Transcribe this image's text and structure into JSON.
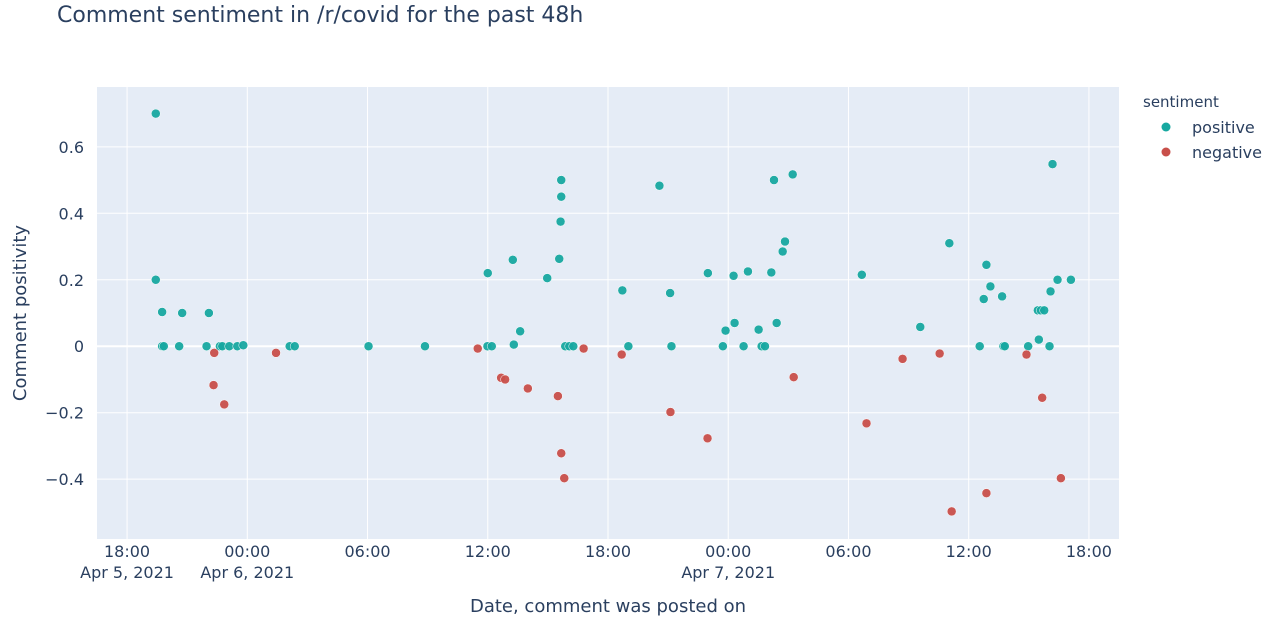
{
  "chart_data": {
    "type": "scatter",
    "title": "Comment sentiment in /r/covid for the past 48h",
    "xlabel": "Date, comment was posted on",
    "ylabel": "Comment positivity",
    "x_axis_type": "date",
    "xlim": [
      "2021-04-05T16:30",
      "2021-04-07T19:30"
    ],
    "ylim": [
      -0.58,
      0.78
    ],
    "grid": true,
    "x_ticks": [
      {
        "at": "2021-04-05T18:00",
        "label": "18:00",
        "date_label": "Apr 5, 2021"
      },
      {
        "at": "2021-04-06T00:00",
        "label": "00:00",
        "date_label": "Apr 6, 2021"
      },
      {
        "at": "2021-04-06T06:00",
        "label": "06:00",
        "date_label": ""
      },
      {
        "at": "2021-04-06T12:00",
        "label": "12:00",
        "date_label": ""
      },
      {
        "at": "2021-04-06T18:00",
        "label": "18:00",
        "date_label": ""
      },
      {
        "at": "2021-04-07T00:00",
        "label": "00:00",
        "date_label": "Apr 7, 2021"
      },
      {
        "at": "2021-04-07T06:00",
        "label": "06:00",
        "date_label": ""
      },
      {
        "at": "2021-04-07T12:00",
        "label": "12:00",
        "date_label": ""
      },
      {
        "at": "2021-04-07T18:00",
        "label": "18:00",
        "date_label": ""
      }
    ],
    "y_ticks": [
      {
        "value": 0.6,
        "label": "0.6"
      },
      {
        "value": 0.4,
        "label": "0.4"
      },
      {
        "value": 0.2,
        "label": "0.2"
      },
      {
        "value": 0,
        "label": "0"
      },
      {
        "value": -0.2,
        "label": "−0.2"
      },
      {
        "value": -0.4,
        "label": "−0.4"
      }
    ],
    "legend": {
      "title": "sentiment",
      "placement": "right"
    },
    "series": [
      {
        "name": "positive",
        "color": "#17a8a0",
        "points": [
          [
            "2021-04-05T19:26",
            0.7
          ],
          [
            "2021-04-05T19:26",
            0.2
          ],
          [
            "2021-04-05T19:45",
            0.103
          ],
          [
            "2021-04-05T19:45",
            0.0
          ],
          [
            "2021-04-05T19:50",
            0.0
          ],
          [
            "2021-04-05T20:36",
            0.0
          ],
          [
            "2021-04-05T20:45",
            0.1
          ],
          [
            "2021-04-05T21:58",
            0.0
          ],
          [
            "2021-04-05T22:05",
            0.1
          ],
          [
            "2021-04-05T22:38",
            0.0
          ],
          [
            "2021-04-05T22:45",
            0.0
          ],
          [
            "2021-04-05T23:06",
            0.0
          ],
          [
            "2021-04-05T23:30",
            0.0
          ],
          [
            "2021-04-05T23:48",
            0.003
          ],
          [
            "2021-04-06T02:07",
            0.0
          ],
          [
            "2021-04-06T02:22",
            0.0
          ],
          [
            "2021-04-06T06:03",
            0.0
          ],
          [
            "2021-04-06T08:52",
            0.0
          ],
          [
            "2021-04-06T11:59",
            0.0
          ],
          [
            "2021-04-06T12:00",
            0.22
          ],
          [
            "2021-04-06T12:12",
            0.0
          ],
          [
            "2021-04-06T13:15",
            0.26
          ],
          [
            "2021-04-06T13:18",
            0.005
          ],
          [
            "2021-04-06T13:37",
            0.045
          ],
          [
            "2021-04-06T14:58",
            0.205
          ],
          [
            "2021-04-06T15:34",
            0.263
          ],
          [
            "2021-04-06T15:38",
            0.375
          ],
          [
            "2021-04-06T15:40",
            0.45
          ],
          [
            "2021-04-06T15:40",
            0.5
          ],
          [
            "2021-04-06T15:52",
            0.0
          ],
          [
            "2021-04-06T16:04",
            0.0
          ],
          [
            "2021-04-06T16:16",
            0.0
          ],
          [
            "2021-04-06T18:43",
            0.168
          ],
          [
            "2021-04-06T19:01",
            0.0
          ],
          [
            "2021-04-06T20:34",
            0.483
          ],
          [
            "2021-04-06T21:06",
            0.16
          ],
          [
            "2021-04-06T21:10",
            0.0
          ],
          [
            "2021-04-06T22:59",
            0.22
          ],
          [
            "2021-04-06T23:44",
            0.0
          ],
          [
            "2021-04-06T23:52",
            0.047
          ],
          [
            "2021-04-07T00:16",
            0.212
          ],
          [
            "2021-04-07T00:19",
            0.07
          ],
          [
            "2021-04-07T00:46",
            0.0
          ],
          [
            "2021-04-07T00:59",
            0.225
          ],
          [
            "2021-04-07T01:31",
            0.05
          ],
          [
            "2021-04-07T01:40",
            0.0
          ],
          [
            "2021-04-07T01:50",
            0.0
          ],
          [
            "2021-04-07T02:09",
            0.222
          ],
          [
            "2021-04-07T02:17",
            0.5
          ],
          [
            "2021-04-07T02:25",
            0.07
          ],
          [
            "2021-04-07T02:43",
            0.285
          ],
          [
            "2021-04-07T02:50",
            0.315
          ],
          [
            "2021-04-07T03:13",
            0.517
          ],
          [
            "2021-04-07T06:40",
            0.215
          ],
          [
            "2021-04-07T09:35",
            0.058
          ],
          [
            "2021-04-07T11:02",
            0.31
          ],
          [
            "2021-04-07T12:33",
            0.0
          ],
          [
            "2021-04-07T12:45",
            0.142
          ],
          [
            "2021-04-07T12:53",
            0.245
          ],
          [
            "2021-04-07T13:05",
            0.18
          ],
          [
            "2021-04-07T13:40",
            0.15
          ],
          [
            "2021-04-07T13:44",
            0.0
          ],
          [
            "2021-04-07T13:48",
            0.0
          ],
          [
            "2021-04-07T14:58",
            0.0
          ],
          [
            "2021-04-07T15:27",
            0.108
          ],
          [
            "2021-04-07T15:30",
            0.02
          ],
          [
            "2021-04-07T15:36",
            0.108
          ],
          [
            "2021-04-07T15:46",
            0.108
          ],
          [
            "2021-04-07T16:02",
            0.0
          ],
          [
            "2021-04-07T16:05",
            0.165
          ],
          [
            "2021-04-07T16:11",
            0.548
          ],
          [
            "2021-04-07T16:26",
            0.2
          ],
          [
            "2021-04-07T17:06",
            0.2
          ]
        ]
      },
      {
        "name": "negative",
        "color": "#c84f4a",
        "points": [
          [
            "2021-04-05T22:51",
            -0.175
          ],
          [
            "2021-04-05T22:21",
            -0.02
          ],
          [
            "2021-04-05T22:19",
            -0.117
          ],
          [
            "2021-04-06T01:26",
            -0.02
          ],
          [
            "2021-04-06T11:30",
            -0.007
          ],
          [
            "2021-04-06T12:40",
            -0.095
          ],
          [
            "2021-04-06T12:52",
            -0.1
          ],
          [
            "2021-04-06T14:00",
            -0.127
          ],
          [
            "2021-04-06T15:30",
            -0.15
          ],
          [
            "2021-04-06T15:40",
            -0.322
          ],
          [
            "2021-04-06T15:49",
            -0.397
          ],
          [
            "2021-04-06T16:47",
            -0.007
          ],
          [
            "2021-04-06T18:41",
            -0.025
          ],
          [
            "2021-04-06T21:07",
            -0.198
          ],
          [
            "2021-04-06T22:58",
            -0.277
          ],
          [
            "2021-04-07T03:16",
            -0.093
          ],
          [
            "2021-04-07T06:54",
            -0.232
          ],
          [
            "2021-04-07T08:42",
            -0.038
          ],
          [
            "2021-04-07T10:33",
            -0.022
          ],
          [
            "2021-04-07T11:09",
            -0.497
          ],
          [
            "2021-04-07T12:53",
            -0.442
          ],
          [
            "2021-04-07T14:53",
            -0.025
          ],
          [
            "2021-04-07T15:40",
            -0.155
          ],
          [
            "2021-04-07T16:36",
            -0.397
          ]
        ]
      }
    ]
  }
}
